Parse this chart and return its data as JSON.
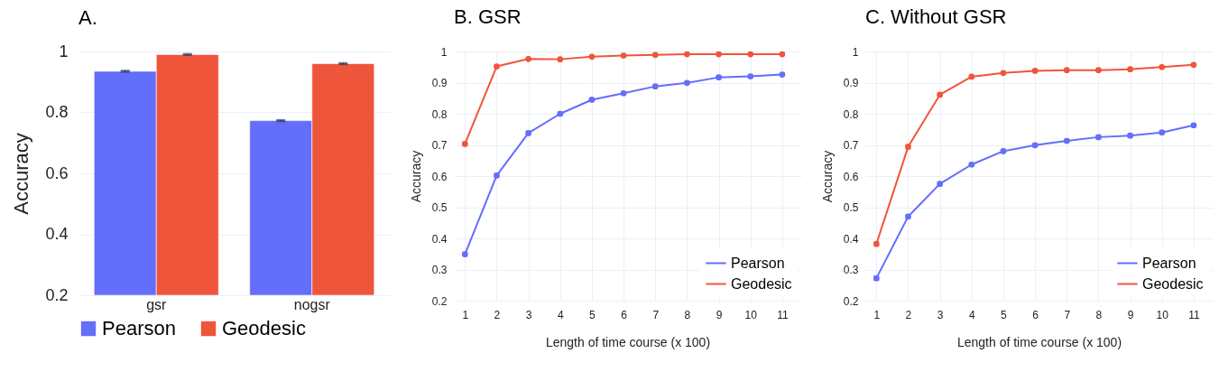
{
  "chart_data": [
    {
      "type": "bar",
      "title": "A.",
      "ylabel": "Accuracy",
      "categories": [
        "gsr",
        "nogsr"
      ],
      "series": [
        {
          "name": "Pearson",
          "color": "#636efa",
          "values": [
            0.935,
            0.773
          ],
          "errors": [
            0.002,
            0.002
          ]
        },
        {
          "name": "Geodesic",
          "color": "#ef553b",
          "values": [
            0.99,
            0.96
          ],
          "errors": [
            0.002,
            0.002
          ]
        }
      ],
      "ylim": [
        0.2,
        1
      ],
      "yticks": [
        0.2,
        0.4,
        0.6,
        0.8,
        1
      ],
      "grid": "y",
      "legend": "bottom"
    },
    {
      "type": "line",
      "title": "B. GSR",
      "xlabel": "Length of time course (x 100)",
      "ylabel": "Accuracy",
      "x": [
        1,
        2,
        3,
        4,
        5,
        6,
        7,
        8,
        9,
        10,
        11
      ],
      "series": [
        {
          "name": "Pearson",
          "color": "#636efa",
          "values": [
            0.349,
            0.602,
            0.738,
            0.8,
            0.845,
            0.866,
            0.888,
            0.899,
            0.917,
            0.92,
            0.926
          ],
          "errors": [
            0.006,
            0.006,
            0.006,
            0.005,
            0.004,
            0.004,
            0.004,
            0.004,
            0.004,
            0.004,
            0.004
          ]
        },
        {
          "name": "Geodesic",
          "color": "#ef553b",
          "values": [
            0.703,
            0.952,
            0.976,
            0.975,
            0.983,
            0.987,
            0.989,
            0.991,
            0.991,
            0.991,
            0.991
          ],
          "errors": [
            0.005,
            0.003,
            0.002,
            0.002,
            0.002,
            0.002,
            0.002,
            0.002,
            0.002,
            0.002,
            0.002
          ]
        }
      ],
      "xlim": [
        0.65,
        11.6
      ],
      "xticks": [
        1,
        2,
        3,
        4,
        5,
        6,
        7,
        8,
        9,
        10,
        11
      ],
      "ylim": [
        0.2,
        1
      ],
      "yticks": [
        0.2,
        0.3,
        0.4,
        0.5,
        0.6,
        0.7,
        0.8,
        0.9,
        1
      ],
      "grid": true,
      "legend": "bottom right",
      "marker": "circle"
    },
    {
      "type": "line",
      "title": "C. Without GSR",
      "xlabel": "Length of time course (x 100)",
      "ylabel": "Accuracy",
      "x": [
        1,
        2,
        3,
        4,
        5,
        6,
        7,
        8,
        9,
        10,
        11
      ],
      "series": [
        {
          "name": "Pearson",
          "color": "#636efa",
          "values": [
            0.272,
            0.47,
            0.575,
            0.637,
            0.68,
            0.699,
            0.713,
            0.725,
            0.73,
            0.74,
            0.763
          ],
          "errors": [
            0.006,
            0.006,
            0.006,
            0.005,
            0.005,
            0.005,
            0.005,
            0.005,
            0.005,
            0.005,
            0.005
          ]
        },
        {
          "name": "Geodesic",
          "color": "#ef553b",
          "values": [
            0.382,
            0.694,
            0.861,
            0.919,
            0.931,
            0.938,
            0.94,
            0.94,
            0.943,
            0.95,
            0.957
          ],
          "errors": [
            0.006,
            0.006,
            0.005,
            0.003,
            0.003,
            0.002,
            0.002,
            0.002,
            0.002,
            0.002,
            0.002
          ]
        }
      ],
      "xlim": [
        0.65,
        11.6
      ],
      "xticks": [
        1,
        2,
        3,
        4,
        5,
        6,
        7,
        8,
        9,
        10,
        11
      ],
      "ylim": [
        0.2,
        1
      ],
      "yticks": [
        0.2,
        0.3,
        0.4,
        0.5,
        0.6,
        0.7,
        0.8,
        0.9,
        1
      ],
      "grid": true,
      "legend": "bottom right",
      "marker": "circle"
    }
  ]
}
